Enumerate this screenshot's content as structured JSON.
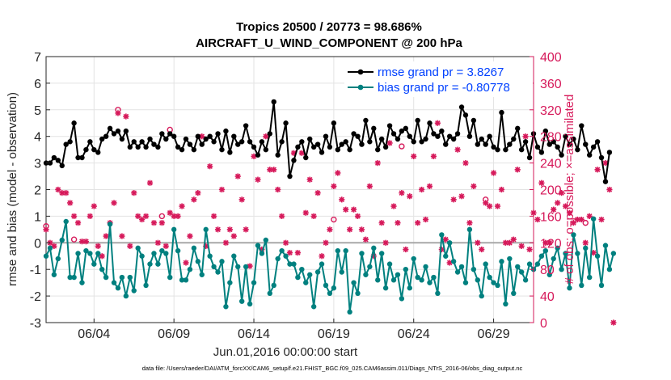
{
  "chart_data": {
    "type": "line",
    "title_line1": "Tropics 20500 / 20773 = 98.686%",
    "title_line2": "AIRCRAFT_U_WIND_COMPONENT @ 200 hPa",
    "xlabel": "Jun.01,2016 00:00:00 start",
    "ylabel_left": "rmse and bias (model - observation)",
    "ylabel_right": "# of obs: o=possible; ×=assimilated",
    "footer": "data file: /Users/raeder/DAI/ATM_forcXX/CAM6_setup/f.e21.FHIST_BGC.f09_025.CAM6assim.011/Diags_NTrS_2016-06/obs_diag_output.nc",
    "x_range_days": [
      1.0,
      31.5
    ],
    "x_tick_days": [
      4,
      9,
      14,
      19,
      24,
      29
    ],
    "x_tick_labels": [
      "06/04",
      "06/09",
      "06/14",
      "06/19",
      "06/24",
      "06/29"
    ],
    "ylim_left": [
      -3,
      7
    ],
    "y_ticks_left": [
      "-3",
      "-2",
      "-1",
      "0",
      "1",
      "2",
      "3",
      "4",
      "5",
      "6",
      "7"
    ],
    "ylim_right": [
      0,
      400
    ],
    "y_ticks_right": [
      "0",
      "40",
      "80",
      "120",
      "160",
      "200",
      "240",
      "280",
      "320",
      "360",
      "400"
    ],
    "x_start_day": 1.0,
    "x_step_days": 0.25,
    "series": [
      {
        "name": "rmse grand pr = 3.8267",
        "color": "#000000",
        "values": [
          3.0,
          3.0,
          3.2,
          3.1,
          2.9,
          3.7,
          3.8,
          4.5,
          3.2,
          3.2,
          3.5,
          3.8,
          3.5,
          3.4,
          3.9,
          4.0,
          4.3,
          4.1,
          4.2,
          3.9,
          4.2,
          3.6,
          3.8,
          3.6,
          3.8,
          3.6,
          3.9,
          3.7,
          3.6,
          4.1,
          3.9,
          4.1,
          4.0,
          3.6,
          3.5,
          3.9,
          3.7,
          3.5,
          4.0,
          3.7,
          3.9,
          4.0,
          3.8,
          4.1,
          3.5,
          4.2,
          3.4,
          4.0,
          3.7,
          3.8,
          4.4,
          3.8,
          3.6,
          3.3,
          3.8,
          3.5,
          4.1,
          5.3,
          3.3,
          3.8,
          4.5,
          2.5,
          3.1,
          3.6,
          3.8,
          3.2,
          3.9,
          3.6,
          3.7,
          3.4,
          4.0,
          3.6,
          4.5,
          3.5,
          3.7,
          3.8,
          3.5,
          4.1,
          4.0,
          3.7,
          4.6,
          3.8,
          4.3,
          3.5,
          3.9,
          3.6,
          4.4,
          4.1,
          3.9,
          4.2,
          4.3,
          4.0,
          3.8,
          4.6,
          3.8,
          3.9,
          4.5,
          4.1,
          4.0,
          4.2,
          3.7,
          4.0,
          3.9,
          4.1,
          5.1,
          4.8,
          4.0,
          4.6,
          3.7,
          3.9,
          3.7,
          4.0,
          3.6,
          3.5,
          4.9,
          3.5,
          3.7,
          3.9,
          4.3,
          3.5,
          3.8,
          3.2,
          4.1,
          3.6,
          3.4,
          4.2,
          3.7,
          3.8,
          3.6,
          3.3,
          4.0,
          3.7,
          3.9,
          3.5,
          4.4,
          3.7,
          3.3,
          3.6,
          3.8,
          3.2,
          2.3,
          3.4
        ]
      },
      {
        "name": "bias grand pr = -0.80778",
        "color": "#00807f",
        "values": [
          -0.5,
          -0.2,
          -1.2,
          -0.6,
          0.1,
          0.8,
          -1.3,
          -1.3,
          -0.4,
          -1.5,
          -0.3,
          -0.4,
          -0.8,
          -0.4,
          -1.0,
          -1.3,
          0.7,
          -1.5,
          -1.7,
          -1.3,
          -2.0,
          -1.3,
          -1.8,
          -0.2,
          -0.5,
          -1.6,
          -0.8,
          -0.4,
          -0.8,
          -0.3,
          -0.4,
          -1.3,
          0.5,
          -0.3,
          -1.4,
          -1.4,
          -1.0,
          -0.2,
          -0.7,
          -1.2,
          0.5,
          -0.5,
          -0.9,
          -1.1,
          -0.7,
          -2.4,
          -1.5,
          -0.5,
          -0.9,
          -2.2,
          -0.9,
          -2.3,
          -1.5,
          -0.1,
          -0.4,
          0.1,
          -1.9,
          -1.6,
          -0.6,
          -0.3,
          -0.5,
          -0.8,
          -0.8,
          -1.3,
          -1.0,
          -1.5,
          -1.2,
          -2.4,
          -1.1,
          -0.8,
          -1.6,
          -1.9,
          -1.7,
          -0.3,
          -1.1,
          -0.3,
          -2.6,
          -1.5,
          -1.9,
          -0.4,
          -1.2,
          -0.9,
          -0.2,
          -1.4,
          -0.4,
          -1.7,
          -0.8,
          -1.4,
          -1.2,
          -2.1,
          -1.0,
          -1.7,
          -0.6,
          -1.3,
          -1.4,
          -0.9,
          -1.5,
          -1.3,
          -1.9,
          0.3,
          -0.5,
          0.0,
          -0.7,
          -1.1,
          -0.9,
          -1.5,
          0.5,
          -1.0,
          -1.4,
          -2.0,
          -0.8,
          -1.3,
          -1.5,
          -1.6,
          -0.7,
          -2.3,
          -0.6,
          -1.9,
          -0.9,
          -1.1,
          -1.4,
          -0.8,
          -1.0,
          -0.8,
          -0.5,
          -0.3,
          -1.2,
          -0.6,
          -0.2,
          -1.0,
          -0.4,
          -1.7,
          0.3,
          -0.4,
          -1.6,
          -0.2,
          -1.3,
          0.9,
          -0.5,
          -1.6,
          -0.1,
          -1.0,
          -0.4
        ]
      }
    ],
    "obs_color": "#d6195a",
    "obs_counts": [
      140,
      120,
      115,
      200,
      195,
      195,
      180,
      160,
      150,
      122,
      122,
      160,
      175,
      115,
      100,
      130,
      150,
      180,
      315,
      130,
      310,
      115,
      195,
      160,
      155,
      160,
      210,
      150,
      120,
      150,
      115,
      165,
      160,
      160,
      175,
      90,
      130,
      185,
      195,
      280,
      115,
      235,
      160,
      140,
      200,
      120,
      140,
      130,
      220,
      185,
      140,
      85,
      250,
      215,
      110,
      280,
      230,
      230,
      200,
      160,
      120,
      105,
      255,
      105,
      255,
      165,
      215,
      160,
      195,
      100,
      120,
      140,
      205,
      225,
      185,
      170,
      140,
      170,
      160,
      140,
      125,
      205,
      100,
      240,
      150,
      120,
      270,
      175,
      150,
      195,
      110,
      190,
      250,
      150,
      200,
      155,
      205,
      250,
      300,
      110,
      125,
      90,
      185,
      260,
      190,
      240,
      150,
      205,
      120,
      110,
      180,
      175,
      225,
      175,
      200,
      120,
      120,
      125,
      230,
      115,
      280,
      110,
      165,
      155,
      210,
      120,
      120,
      170,
      180,
      195,
      175,
      165,
      150,
      155,
      155,
      120,
      160,
      105,
      230,
      155,
      240,
      200,
      0
    ],
    "possible_marks": [
      {
        "i": 0,
        "v": 145
      },
      {
        "i": 7,
        "v": 125
      },
      {
        "i": 18,
        "v": 320
      },
      {
        "i": 29,
        "v": 160
      },
      {
        "i": 31,
        "v": 290
      },
      {
        "i": 72,
        "v": 155
      },
      {
        "i": 89,
        "v": 265
      },
      {
        "i": 110,
        "v": 185
      },
      {
        "i": 135,
        "v": 150
      }
    ],
    "legend_position": "top-right",
    "grid": true
  }
}
